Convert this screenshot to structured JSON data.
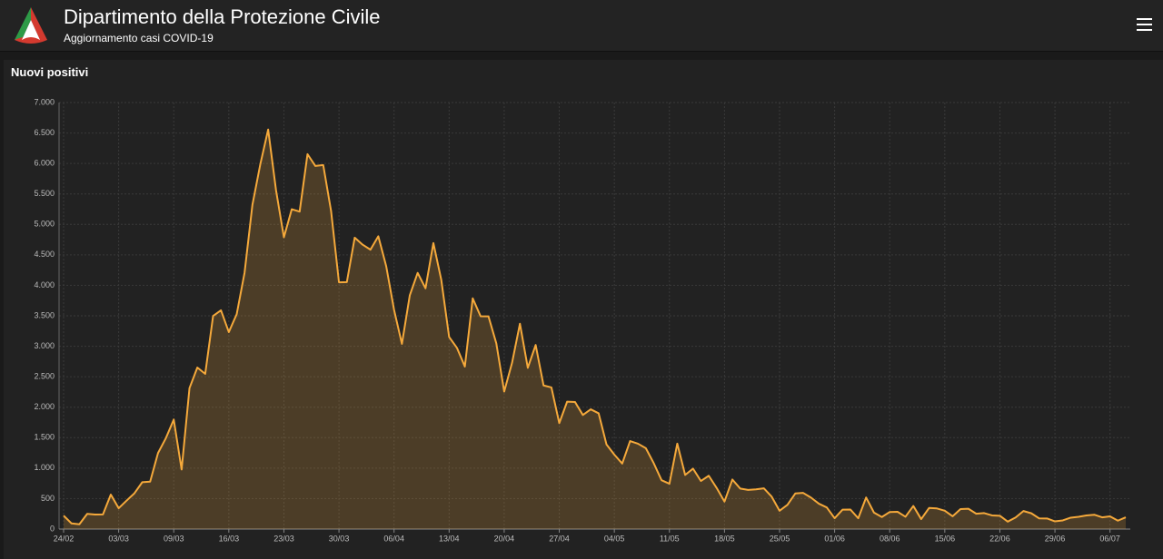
{
  "header": {
    "title": "Dipartimento della Protezione Civile",
    "subtitle": "Aggiornamento casi COVID-19"
  },
  "chart_data": {
    "type": "line",
    "title": "Nuovi positivi",
    "categories": [
      "24/02",
      null,
      null,
      null,
      null,
      null,
      null,
      "03/03",
      null,
      null,
      null,
      null,
      null,
      null,
      "09/03",
      null,
      null,
      null,
      null,
      null,
      null,
      "16/03",
      null,
      null,
      null,
      null,
      null,
      null,
      "23/03",
      null,
      null,
      null,
      null,
      null,
      null,
      "30/03",
      null,
      null,
      null,
      null,
      null,
      null,
      "06/04",
      null,
      null,
      null,
      null,
      null,
      null,
      "13/04",
      null,
      null,
      null,
      null,
      null,
      null,
      "20/04",
      null,
      null,
      null,
      null,
      null,
      null,
      "27/04",
      null,
      null,
      null,
      null,
      null,
      null,
      "04/05",
      null,
      null,
      null,
      null,
      null,
      null,
      "11/05",
      null,
      null,
      null,
      null,
      null,
      null,
      "18/05",
      null,
      null,
      null,
      null,
      null,
      null,
      "25/05",
      null,
      null,
      null,
      null,
      null,
      null,
      "01/06",
      null,
      null,
      null,
      null,
      null,
      null,
      "08/06",
      null,
      null,
      null,
      null,
      null,
      null,
      "15/06",
      null,
      null,
      null,
      null,
      null,
      null,
      "22/06",
      null,
      null,
      null,
      null,
      null,
      null,
      "29/06",
      null,
      null,
      null,
      null,
      null,
      null,
      "06/07",
      null,
      null
    ],
    "series": [
      {
        "color": "#f5a93b",
        "values": [
          221,
          93,
          78,
          250,
          238,
          240,
          566,
          342,
          466,
          587,
          769,
          778,
          1247,
          1492,
          1797,
          977,
          2313,
          2651,
          2547,
          3497,
          3590,
          3233,
          3526,
          4207,
          5322,
          5986,
          6557,
          5560,
          4789,
          5249,
          5210,
          6153,
          5959,
          5974,
          5217,
          4050,
          4053,
          4782,
          4668,
          4585,
          4805,
          4316,
          3599,
          3039,
          3836,
          4204,
          3951,
          4694,
          4092,
          3153,
          2972,
          2667,
          3786,
          3493,
          3491,
          3047,
          2256,
          2729,
          3370,
          2646,
          3021,
          2357,
          2324,
          1739,
          2091,
          2086,
          1872,
          1965,
          1900,
          1389,
          1221,
          1075,
          1444,
          1401,
          1327,
          1083,
          802,
          744,
          1402,
          888,
          992,
          789,
          875,
          675,
          451,
          813,
          665,
          642,
          652,
          669,
          531,
          300,
          397,
          584,
          593,
          516,
          416,
          355,
          178,
          318,
          321,
          177,
          518,
          270,
          197,
          280,
          283,
          202,
          379,
          163,
          346,
          338,
          301,
          210,
          328,
          333,
          251,
          262,
          224,
          218,
          122,
          190,
          296,
          259,
          175,
          174,
          126,
          142,
          187,
          201,
          223,
          235,
          192,
          208,
          138,
          193
        ]
      }
    ],
    "ylim": [
      0,
      7000
    ],
    "yticks": [
      0,
      500,
      {
        "value": 1000,
        "label": "1.000"
      },
      {
        "value": 1500,
        "label": "1.500"
      },
      {
        "value": 2000,
        "label": "2.000"
      },
      {
        "value": 2500,
        "label": "2.500"
      },
      {
        "value": 3000,
        "label": "3.000"
      },
      {
        "value": 3500,
        "label": "3.500"
      },
      {
        "value": 4000,
        "label": "4.000"
      },
      {
        "value": 4500,
        "label": "4.500"
      },
      {
        "value": 5000,
        "label": "5.000"
      },
      {
        "value": 5500,
        "label": "5.500"
      },
      {
        "value": 6000,
        "label": "6.000"
      },
      {
        "value": 6500,
        "label": "6.500"
      },
      {
        "value": 7000,
        "label": "7.000"
      }
    ],
    "grid": true
  }
}
